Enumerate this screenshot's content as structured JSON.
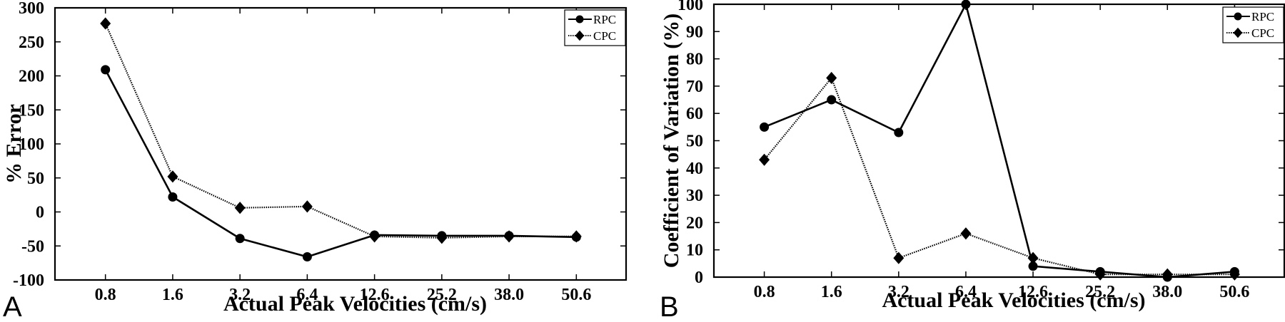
{
  "chart_data": [
    {
      "type": "line",
      "panel_label": "A",
      "categories": [
        "0.8",
        "1.6",
        "3.2",
        "6.4",
        "12.6",
        "25.2",
        "38.0",
        "50.6"
      ],
      "series": [
        {
          "name": "RPC",
          "marker": "circle",
          "line": "solid",
          "values": [
            209,
            22,
            -39,
            -66,
            -34,
            -35,
            -35,
            -37
          ]
        },
        {
          "name": "CPC",
          "marker": "diamond",
          "line": "dotted",
          "values": [
            277,
            52,
            6,
            8,
            -36,
            -38,
            -36,
            -36
          ]
        }
      ],
      "xlabel": "Actual Peak Velocities (cm/s)",
      "ylabel": "% Error",
      "ylim": [
        -100,
        300
      ],
      "yticks": [
        "-100",
        "-50",
        "0",
        "50",
        "100",
        "150",
        "200",
        "250",
        "300"
      ],
      "grid": false,
      "legend": "top-right"
    },
    {
      "type": "line",
      "panel_label": "B",
      "categories": [
        "0.8",
        "1.6",
        "3.2",
        "6.4",
        "12.6",
        "25.2",
        "38.0",
        "50.6"
      ],
      "series": [
        {
          "name": "RPC",
          "marker": "circle",
          "line": "solid",
          "values": [
            55,
            65,
            53,
            100,
            4,
            2,
            0,
            2
          ]
        },
        {
          "name": "CPC",
          "marker": "diamond",
          "line": "dotted",
          "values": [
            43,
            73,
            7,
            16,
            7,
            1,
            1,
            1
          ]
        }
      ],
      "xlabel": "Actual Peak Velocities (cm/s)",
      "ylabel": "Coefficient of Variation (%)",
      "ylim": [
        0,
        100
      ],
      "yticks": [
        "0",
        "10",
        "20",
        "30",
        "40",
        "50",
        "60",
        "70",
        "80",
        "90",
        "100"
      ],
      "grid": false,
      "legend": "top-right"
    }
  ]
}
